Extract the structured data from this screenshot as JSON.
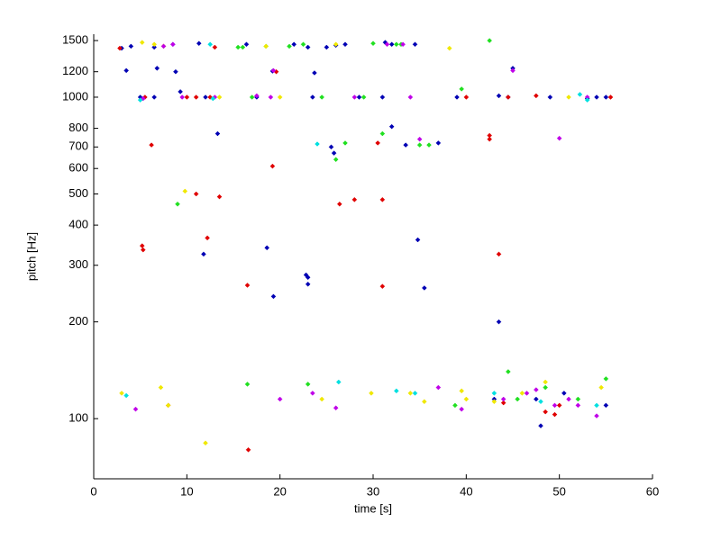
{
  "chart_data": {
    "type": "scatter",
    "x_label": "time [s]",
    "y_label": "pitch [Hz]",
    "xlim": [
      0,
      60
    ],
    "xticks": [
      0,
      10,
      20,
      30,
      40,
      50,
      60
    ],
    "ylim": [
      65,
      1570
    ],
    "yticks": [
      100,
      200,
      300,
      400,
      500,
      600,
      700,
      800,
      1000,
      1200,
      1500
    ],
    "y_log": true,
    "series": [
      {
        "color": "#0000b4",
        "x": [
          3,
          3.5,
          4,
          6.5,
          6.8,
          8.5,
          8.8,
          9.3,
          5,
          6.5,
          11.3,
          12,
          13.3,
          16.4,
          19.2,
          21.5,
          23,
          23.7,
          25,
          26,
          27,
          25.5,
          25.8,
          22.8,
          23,
          23,
          19.3,
          18.6,
          11.8,
          31.3,
          32,
          31,
          32,
          33.5,
          34.5,
          35.5,
          34.8,
          37,
          39,
          43.5,
          43.5,
          44.5,
          45,
          49,
          53,
          54,
          55,
          50.5,
          43,
          48,
          28.5,
          17.5,
          23.5,
          47.5,
          55
        ],
        "values": [
          1420,
          1210,
          1440,
          1430,
          1230,
          1460,
          1200,
          1040,
          1000,
          1000,
          1470,
          1000,
          770,
          1460,
          1205,
          1460,
          1430,
          1190,
          1430,
          1450,
          1460,
          700,
          670,
          280,
          275,
          262,
          240,
          340,
          325,
          1480,
          1460,
          1000,
          810,
          710,
          1460,
          255,
          360,
          720,
          1000,
          200,
          1010,
          1000,
          1230,
          1000,
          990,
          1000,
          1000,
          120,
          115,
          95,
          1000,
          1000,
          1000,
          115,
          110
        ]
      },
      {
        "color": "#e00000",
        "x": [
          2.8,
          5.2,
          5.3,
          5.5,
          6.2,
          7.5,
          8,
          10,
          11,
          11,
          12.5,
          12.2,
          13,
          13.5,
          16.5,
          16.6,
          19.2,
          19.6,
          26.4,
          28,
          30.5,
          31,
          31,
          40,
          42.5,
          42.5,
          43.5,
          44.5,
          47.5,
          48.5,
          49.5,
          55.5,
          50,
          44
        ],
        "values": [
          1420,
          345,
          335,
          1000,
          710,
          1440,
          110,
          1000,
          500,
          1000,
          1000,
          365,
          1430,
          490,
          260,
          80,
          610,
          1200,
          465,
          480,
          720,
          480,
          258,
          1000,
          760,
          740,
          325,
          1000,
          1010,
          105,
          103,
          1000,
          110,
          112
        ]
      },
      {
        "color": "#20e020",
        "x": [
          9,
          15.5,
          16,
          16.5,
          18.5,
          21,
          22.5,
          24.5,
          26,
          27,
          29,
          30,
          31,
          32.5,
          33,
          35,
          36,
          38.8,
          39.5,
          42.5,
          44.5,
          45.5,
          48.5,
          52,
          55,
          23,
          17
        ],
        "values": [
          465,
          1430,
          1430,
          128,
          1440,
          1440,
          1460,
          1000,
          640,
          720,
          1000,
          1470,
          770,
          1460,
          1460,
          710,
          710,
          110,
          1060,
          1500,
          140,
          115,
          125,
          115,
          133,
          128,
          1000
        ]
      },
      {
        "color": "#f0e800",
        "x": [
          5.2,
          6.5,
          7.2,
          7.5,
          8,
          9.8,
          12,
          13.5,
          18.5,
          20,
          24.5,
          26,
          29.8,
          34,
          35.5,
          38.2,
          40,
          43,
          46,
          48.5,
          51,
          54.5,
          39.5,
          3
        ],
        "values": [
          1480,
          1460,
          125,
          1440,
          110,
          510,
          84,
          1000,
          1440,
          1000,
          115,
          1460,
          120,
          120,
          113,
          1420,
          115,
          113,
          120,
          130,
          1000,
          125,
          122,
          120
        ]
      },
      {
        "color": "#c000e8",
        "x": [
          4.5,
          5.3,
          7.5,
          9.5,
          13,
          17.5,
          19,
          19.3,
          20,
          23.5,
          26,
          28,
          34,
          35,
          37,
          39.5,
          44,
          45,
          46.5,
          47.5,
          50,
          51,
          52,
          53,
          54,
          49.5,
          33.2,
          31.5,
          8.5
        ],
        "values": [
          107,
          990,
          1440,
          1000,
          1000,
          1010,
          1000,
          1210,
          115,
          120,
          108,
          1000,
          1000,
          740,
          125,
          107,
          115,
          1210,
          120,
          123,
          745,
          115,
          110,
          1000,
          102,
          110,
          1460,
          1460,
          1460
        ]
      },
      {
        "color": "#00e0e0",
        "x": [
          3.5,
          5,
          12.5,
          24,
          26.3,
          32.5,
          34.5,
          43,
          48,
          52.2,
          54,
          12.8,
          53
        ],
        "values": [
          118,
          980,
          1460,
          715,
          130,
          122,
          120,
          120,
          113,
          1020,
          110,
          990,
          980
        ]
      }
    ]
  }
}
